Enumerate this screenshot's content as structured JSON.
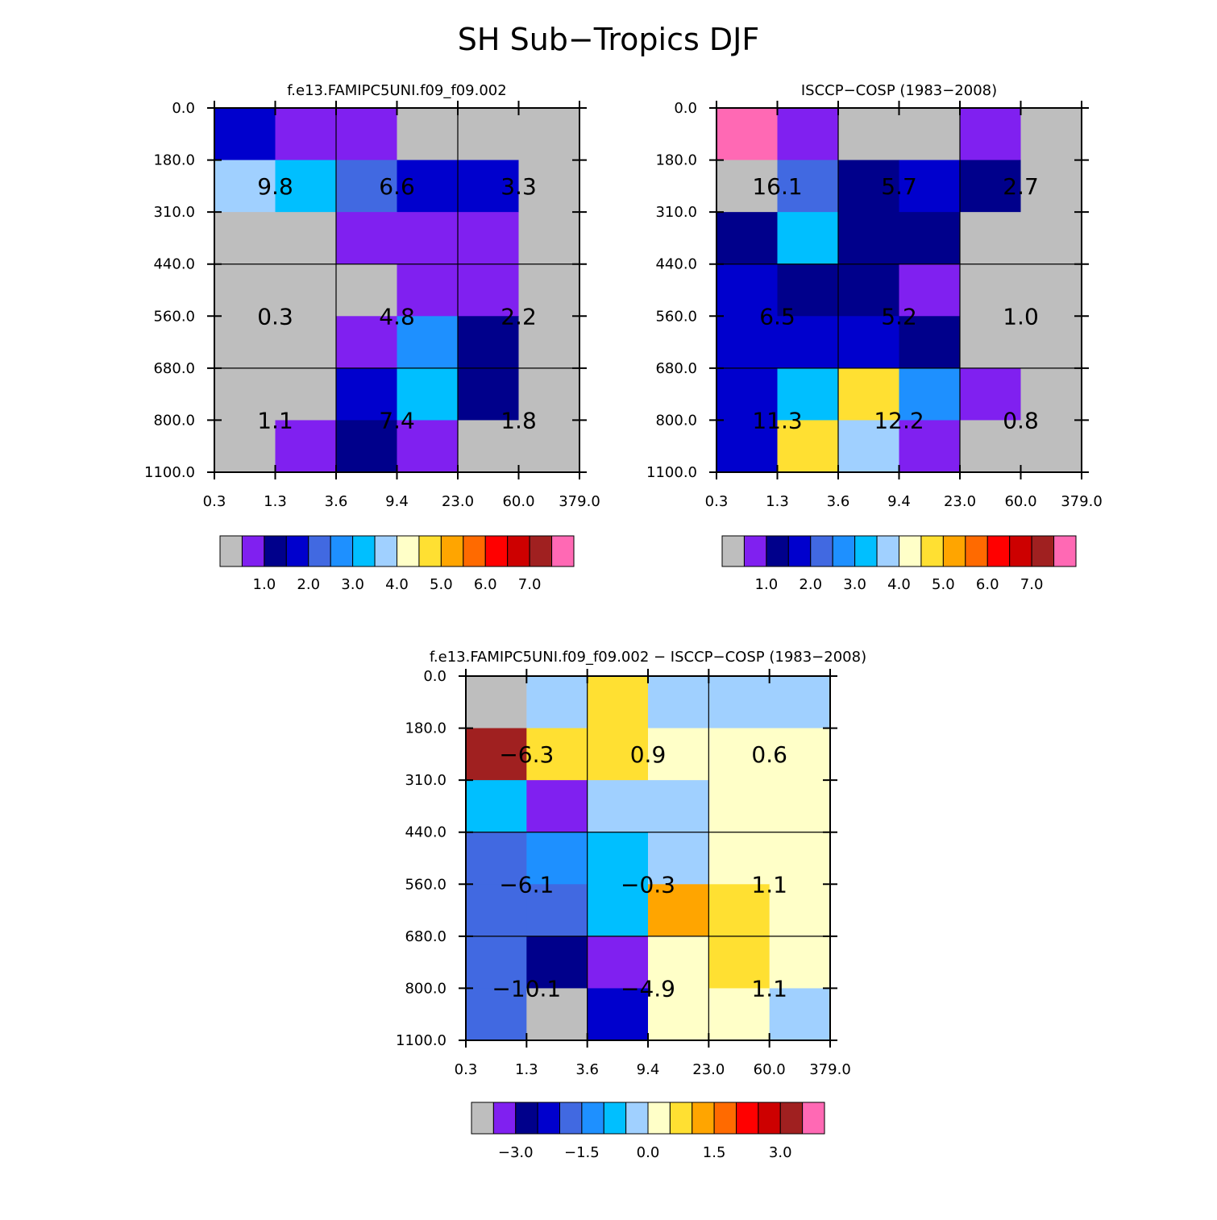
{
  "title": "SH Sub−Tropics DJF",
  "colors": [
    "#bebebe",
    "#8020f0",
    "#00008b",
    "#0000cd",
    "#4169e1",
    "#1e90ff",
    "#00bfff",
    "#a0d0ff",
    "#ffffc8",
    "#ffe032",
    "#ffa500",
    "#ff6a00",
    "#ff0000",
    "#cd0000",
    "#a02020",
    "#ff69b4"
  ],
  "chart_data": [
    {
      "type": "heatmap",
      "title": "f.e13.FAMIPC5UNI.f09_f09.002",
      "x_ticks": [
        "0.3",
        "1.3",
        "3.6",
        "9.4",
        "23.0",
        "60.0",
        "379.0"
      ],
      "y_ticks": [
        "0.0",
        "180.0",
        "310.0",
        "440.0",
        "560.0",
        "680.0",
        "800.0",
        "1100.0"
      ],
      "cell_color_index": [
        [
          3,
          1,
          1,
          0,
          0,
          0
        ],
        [
          7,
          6,
          4,
          3,
          3,
          0
        ],
        [
          0,
          0,
          1,
          1,
          1,
          0
        ],
        [
          0,
          0,
          0,
          1,
          1,
          0
        ],
        [
          0,
          0,
          1,
          5,
          2,
          0
        ],
        [
          0,
          0,
          3,
          6,
          2,
          0
        ],
        [
          0,
          1,
          2,
          1,
          0,
          0
        ]
      ],
      "box_labels": [
        {
          "x_index": 0,
          "y_index": 0,
          "text": "9.8"
        },
        {
          "x_index": 1,
          "y_index": 0,
          "text": "6.6"
        },
        {
          "x_index": 2,
          "y_index": 0,
          "text": "3.3"
        },
        {
          "x_index": 0,
          "y_index": 1,
          "text": "0.3"
        },
        {
          "x_index": 1,
          "y_index": 1,
          "text": "4.8"
        },
        {
          "x_index": 2,
          "y_index": 1,
          "text": "2.2"
        },
        {
          "x_index": 0,
          "y_index": 2,
          "text": "1.1"
        },
        {
          "x_index": 1,
          "y_index": 2,
          "text": "7.4"
        },
        {
          "x_index": 2,
          "y_index": 2,
          "text": "1.8"
        }
      ],
      "colorbar_labels": [
        "1.0",
        "2.0",
        "3.0",
        "4.0",
        "5.0",
        "6.0",
        "7.0"
      ]
    },
    {
      "type": "heatmap",
      "title": "ISCCP−COSP (1983−2008)",
      "x_ticks": [
        "0.3",
        "1.3",
        "3.6",
        "9.4",
        "23.0",
        "60.0",
        "379.0"
      ],
      "y_ticks": [
        "0.0",
        "180.0",
        "310.0",
        "440.0",
        "560.0",
        "680.0",
        "800.0",
        "1100.0"
      ],
      "cell_color_index": [
        [
          15,
          1,
          0,
          0,
          1,
          0
        ],
        [
          0,
          4,
          2,
          3,
          2,
          0
        ],
        [
          2,
          6,
          2,
          2,
          0,
          0
        ],
        [
          3,
          2,
          2,
          1,
          0,
          0
        ],
        [
          3,
          3,
          3,
          2,
          0,
          0
        ],
        [
          3,
          6,
          9,
          5,
          1,
          0
        ],
        [
          3,
          9,
          7,
          1,
          0,
          0
        ]
      ],
      "box_labels": [
        {
          "x_index": 0,
          "y_index": 0,
          "text": "16.1"
        },
        {
          "x_index": 1,
          "y_index": 0,
          "text": "5.7"
        },
        {
          "x_index": 2,
          "y_index": 0,
          "text": "2.7"
        },
        {
          "x_index": 0,
          "y_index": 1,
          "text": "6.5"
        },
        {
          "x_index": 1,
          "y_index": 1,
          "text": "5.2"
        },
        {
          "x_index": 2,
          "y_index": 1,
          "text": "1.0"
        },
        {
          "x_index": 0,
          "y_index": 2,
          "text": "11.3"
        },
        {
          "x_index": 1,
          "y_index": 2,
          "text": "12.2"
        },
        {
          "x_index": 2,
          "y_index": 2,
          "text": "0.8"
        }
      ],
      "colorbar_labels": [
        "1.0",
        "2.0",
        "3.0",
        "4.0",
        "5.0",
        "6.0",
        "7.0"
      ]
    },
    {
      "type": "heatmap",
      "title": "f.e13.FAMIPC5UNI.f09_f09.002 − ISCCP−COSP (1983−2008)",
      "x_ticks": [
        "0.3",
        "1.3",
        "3.6",
        "9.4",
        "23.0",
        "60.0",
        "379.0"
      ],
      "y_ticks": [
        "0.0",
        "180.0",
        "310.0",
        "440.0",
        "560.0",
        "680.0",
        "800.0",
        "1100.0"
      ],
      "cell_color_index": [
        [
          0,
          7,
          9,
          7,
          7,
          7
        ],
        [
          14,
          9,
          9,
          8,
          8,
          8
        ],
        [
          6,
          1,
          7,
          7,
          8,
          8
        ],
        [
          4,
          5,
          6,
          7,
          8,
          8
        ],
        [
          4,
          4,
          6,
          10,
          9,
          8
        ],
        [
          4,
          2,
          1,
          8,
          9,
          8
        ],
        [
          4,
          0,
          3,
          8,
          8,
          7
        ]
      ],
      "box_labels": [
        {
          "x_index": 0,
          "y_index": 0,
          "text": "−6.3"
        },
        {
          "x_index": 1,
          "y_index": 0,
          "text": "0.9"
        },
        {
          "x_index": 2,
          "y_index": 0,
          "text": "0.6"
        },
        {
          "x_index": 0,
          "y_index": 1,
          "text": "−6.1"
        },
        {
          "x_index": 1,
          "y_index": 1,
          "text": "−0.3"
        },
        {
          "x_index": 2,
          "y_index": 1,
          "text": "1.1"
        },
        {
          "x_index": 0,
          "y_index": 2,
          "text": "−10.1"
        },
        {
          "x_index": 1,
          "y_index": 2,
          "text": "−4.9"
        },
        {
          "x_index": 2,
          "y_index": 2,
          "text": "1.1"
        }
      ],
      "colorbar_labels": [
        "−3.0",
        "−1.5",
        "0.0",
        "1.5",
        "3.0"
      ]
    }
  ]
}
